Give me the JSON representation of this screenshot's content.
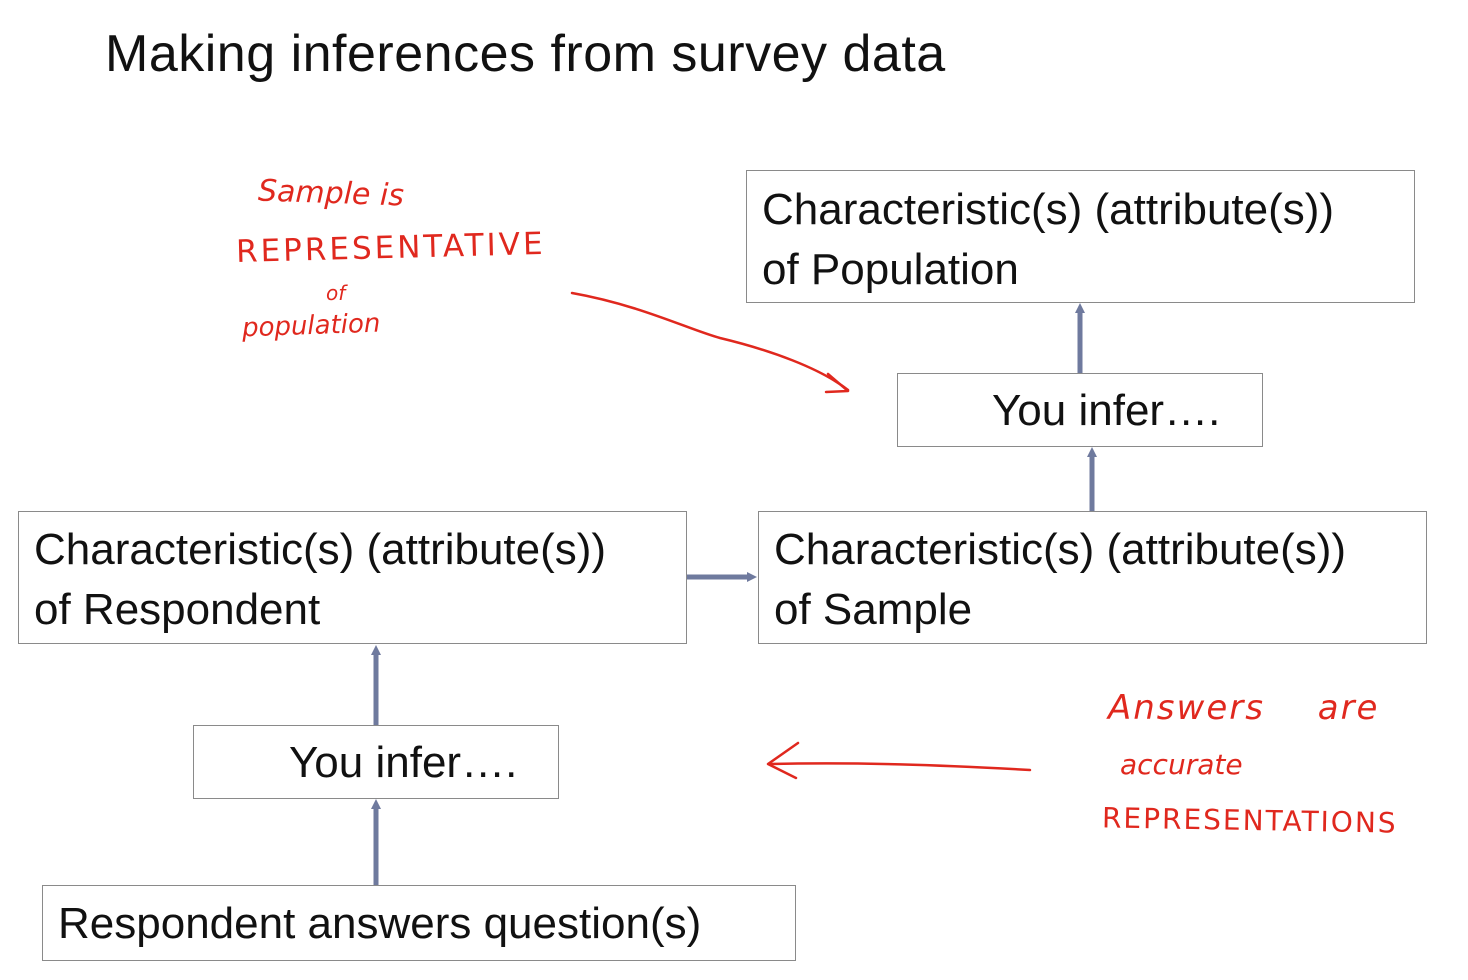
{
  "title": "Making inferences from survey data",
  "boxes": {
    "population": {
      "line1": "Characteristic(s) (attribute(s))",
      "line2": "of Population"
    },
    "infer_top": "You infer….",
    "respondent": {
      "line1": "Characteristic(s) (attribute(s))",
      "line2": "of Respondent"
    },
    "sample": {
      "line1": "Characteristic(s) (attribute(s))",
      "line2": "of Sample"
    },
    "infer_bottom": "You infer….",
    "answers": "Respondent  answers  question(s)"
  },
  "annotations": {
    "left_note": [
      "Sample is",
      "REPRESENTATIVE",
      "of",
      "population"
    ],
    "right_note": [
      "Answers are",
      "accurate",
      "REPRESENTATIONS"
    ]
  },
  "colors": {
    "arrow": "#6f7a9e",
    "ink": "#e0281e",
    "box_border": "#8a8a8a",
    "text": "#111111"
  }
}
